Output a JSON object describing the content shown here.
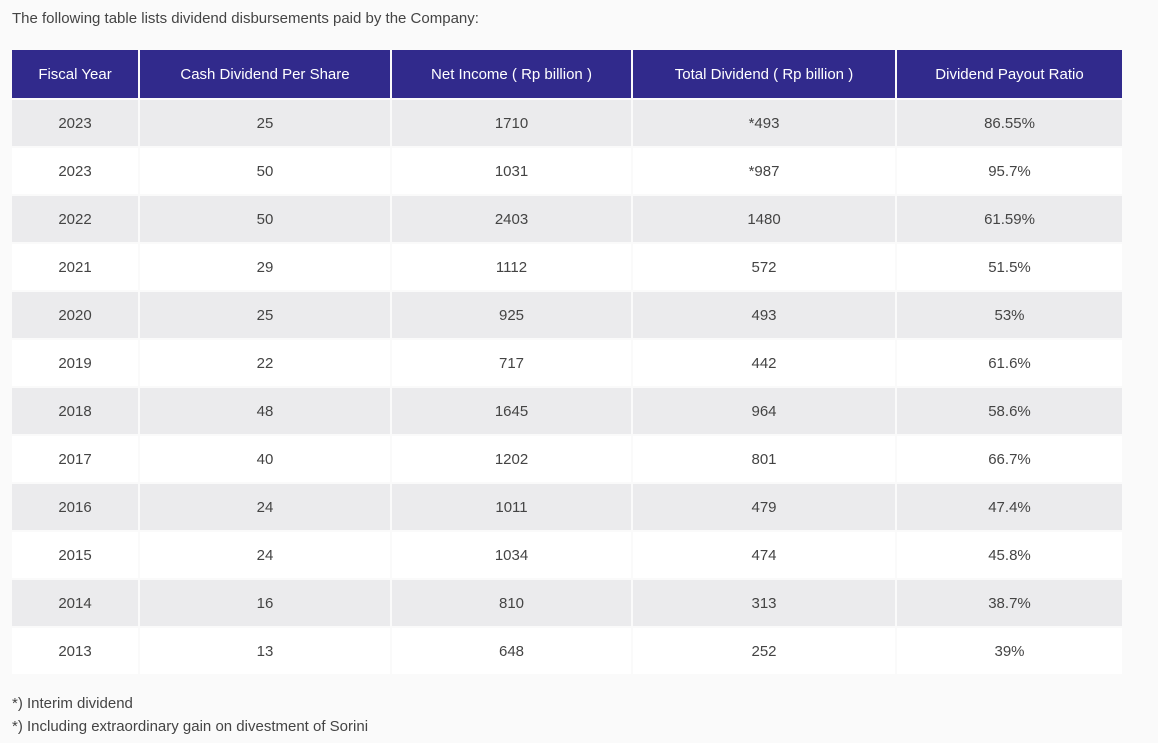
{
  "intro": "The following table lists dividend disbursements paid by the Company:",
  "table": {
    "headers": [
      "Fiscal Year",
      "Cash Dividend Per Share",
      "Net Income ( Rp billion )",
      "Total Dividend ( Rp billion )",
      "Dividend Payout Ratio"
    ],
    "rows": [
      [
        "2023",
        "25",
        "1710",
        "*493",
        "86.55%"
      ],
      [
        "2023",
        "50",
        "1031",
        "*987",
        "95.7%"
      ],
      [
        "2022",
        "50",
        "2403",
        "1480",
        "61.59%"
      ],
      [
        "2021",
        "29",
        "1112",
        "572",
        "51.5%"
      ],
      [
        "2020",
        "25",
        "925",
        "493",
        "53%"
      ],
      [
        "2019",
        "22",
        "717",
        "442",
        "61.6%"
      ],
      [
        "2018",
        "48",
        "1645",
        "964",
        "58.6%"
      ],
      [
        "2017",
        "40",
        "1202",
        "801",
        "66.7%"
      ],
      [
        "2016",
        "24",
        "1011",
        "479",
        "47.4%"
      ],
      [
        "2015",
        "24",
        "1034",
        "474",
        "45.8%"
      ],
      [
        "2014",
        "16",
        "810",
        "313",
        "38.7%"
      ],
      [
        "2013",
        "13",
        "648",
        "252",
        "39%"
      ]
    ]
  },
  "notes": [
    "*) Interim dividend",
    "*) Including extraordinary gain on divestment of Sorini"
  ],
  "colors": {
    "header_bg": "#312a8c",
    "header_text": "#ffffff",
    "row_odd": "#ebebed",
    "row_even": "#ffffff"
  }
}
